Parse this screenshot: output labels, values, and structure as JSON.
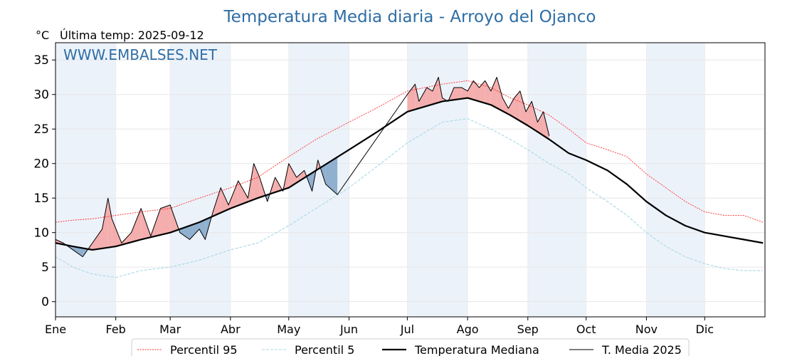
{
  "chart_data": {
    "type": "line",
    "title": "Temperatura Media diaria - Arroyo del Ojanco",
    "subtitle": "Última temp: 2025-09-12",
    "ylabel": "°C",
    "watermark": "WWW.EMBALSES.NET",
    "ylim": [
      -2.2,
      37.5
    ],
    "yticks": [
      0,
      5,
      10,
      15,
      20,
      25,
      30,
      35
    ],
    "months": [
      "Ene",
      "Feb",
      "Mar",
      "Abr",
      "May",
      "Jun",
      "Jul",
      "Ago",
      "Sep",
      "Oct",
      "Nov",
      "Dic"
    ],
    "month_start_days": [
      1,
      32,
      60,
      91,
      121,
      152,
      182,
      213,
      244,
      274,
      305,
      335
    ],
    "days_in_year": 365,
    "grid": true,
    "legend_position": "bottom",
    "colors": {
      "title": "#2e6da4",
      "p95": "#ff2a2a",
      "p5": "#a8d8e6",
      "median": "#000000",
      "t2025": "#000000",
      "above": "#f4aaaa",
      "below": "#8aaccb",
      "band": "#dfeaf6"
    },
    "series": [
      {
        "name": "Percentil 95",
        "key": "p95",
        "x": [
          1,
          10,
          20,
          32,
          45,
          60,
          75,
          91,
          105,
          121,
          135,
          152,
          166,
          182,
          200,
          213,
          225,
          235,
          244,
          255,
          265,
          274,
          285,
          295,
          305,
          315,
          325,
          335,
          345,
          355,
          365
        ],
        "values": [
          11.5,
          11.8,
          12.0,
          12.5,
          13.0,
          13.5,
          15.0,
          16.5,
          18.0,
          21.0,
          23.5,
          26.0,
          28.0,
          30.5,
          31.5,
          32.0,
          31.0,
          29.5,
          28.5,
          27.0,
          25.0,
          23.0,
          22.0,
          21.0,
          18.5,
          16.5,
          14.5,
          13.0,
          12.5,
          12.5,
          11.5
        ]
      },
      {
        "name": "Percentil 5",
        "key": "p5",
        "x": [
          1,
          10,
          20,
          32,
          45,
          60,
          75,
          91,
          105,
          121,
          135,
          152,
          166,
          182,
          200,
          213,
          225,
          235,
          244,
          255,
          265,
          274,
          285,
          295,
          305,
          315,
          325,
          335,
          345,
          355,
          365
        ],
        "values": [
          6.5,
          5.0,
          4.0,
          3.5,
          4.5,
          5.0,
          6.0,
          7.5,
          8.5,
          11.0,
          13.5,
          16.5,
          19.5,
          23.0,
          26.0,
          26.5,
          25.0,
          23.5,
          22.0,
          20.0,
          18.5,
          16.5,
          14.5,
          12.5,
          10.0,
          8.0,
          6.5,
          5.5,
          4.8,
          4.5,
          4.5
        ]
      },
      {
        "name": "Temperatura Mediana",
        "key": "median",
        "x": [
          1,
          10,
          20,
          32,
          45,
          60,
          75,
          91,
          105,
          121,
          135,
          152,
          166,
          182,
          200,
          213,
          225,
          235,
          244,
          255,
          265,
          274,
          285,
          295,
          305,
          315,
          325,
          335,
          345,
          355,
          365
        ],
        "values": [
          8.5,
          8.0,
          7.5,
          8.0,
          9.0,
          10.0,
          11.5,
          13.5,
          15.0,
          16.5,
          19.0,
          22.0,
          24.5,
          27.5,
          29.0,
          29.5,
          28.5,
          27.0,
          25.5,
          23.5,
          21.5,
          20.5,
          19.0,
          17.0,
          14.5,
          12.5,
          11.0,
          10.0,
          9.5,
          9.0,
          8.5
        ]
      },
      {
        "name": "T. Media 2025",
        "key": "t2025",
        "x": [
          1,
          5,
          10,
          15,
          20,
          25,
          28,
          30,
          35,
          40,
          45,
          50,
          55,
          60,
          65,
          70,
          75,
          78,
          82,
          86,
          90,
          95,
          100,
          103,
          106,
          110,
          114,
          118,
          121,
          125,
          129,
          133,
          136,
          140,
          146,
          182,
          186,
          188,
          192,
          195,
          198,
          200,
          203,
          206,
          210,
          213,
          216,
          219,
          222,
          225,
          228,
          231,
          234,
          237,
          240,
          243,
          246,
          249,
          252,
          255
        ],
        "values": [
          9.0,
          8.5,
          7.5,
          6.5,
          8.5,
          10.5,
          15.0,
          12.0,
          8.5,
          10.0,
          13.5,
          9.5,
          13.5,
          14.0,
          10.0,
          9.0,
          10.5,
          9.0,
          13.0,
          16.5,
          14.0,
          17.5,
          15.0,
          20.0,
          18.0,
          14.5,
          18.0,
          16.0,
          20.0,
          18.0,
          19.0,
          16.0,
          20.5,
          17.0,
          15.5,
          30.0,
          31.5,
          29.0,
          31.0,
          30.5,
          32.5,
          29.5,
          29.0,
          31.0,
          31.0,
          30.5,
          32.0,
          31.0,
          32.0,
          30.5,
          32.5,
          29.5,
          28.0,
          29.5,
          30.5,
          27.5,
          29.0,
          26.0,
          27.5,
          24.0
        ]
      }
    ],
    "legend": [
      "Percentil 95",
      "Percentil 5",
      "Temperatura Mediana",
      "T. Media 2025"
    ]
  }
}
